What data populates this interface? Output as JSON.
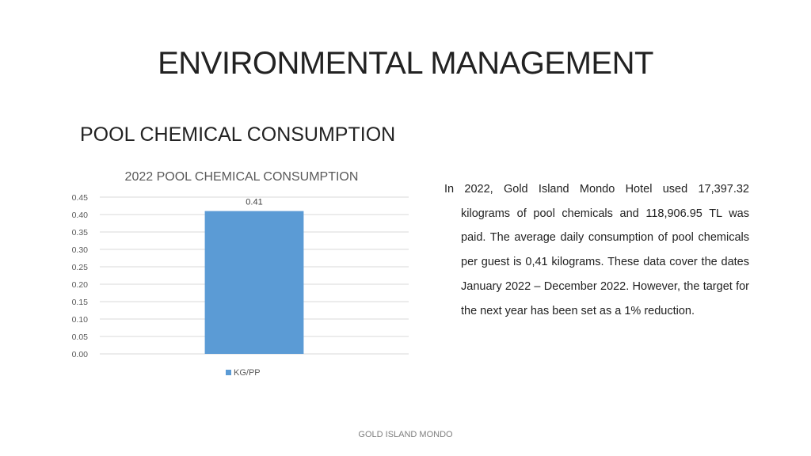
{
  "slide": {
    "title": "ENVIRONMENTAL MANAGEMENT",
    "subtitle": "POOL CHEMICAL CONSUMPTION",
    "paragraph": "In 2022, Gold Island Mondo Hotel used 17,397.32 kilograms of pool chemicals and 118,906.95 TL was paid. The average daily consumption of pool chemicals per guest is 0,41 kilograms. These data cover the dates January 2022 – December 2022. However, the target for the next year has been set as a 1% reduction.",
    "footer": "GOLD ISLAND MONDO"
  },
  "chart_data": {
    "type": "bar",
    "title": "2022 POOL CHEMICAL CONSUMPTION",
    "categories": [
      ""
    ],
    "series": [
      {
        "name": "KG/PP",
        "values": [
          0.41
        ],
        "data_labels": [
          "0.41"
        ],
        "color": "#5b9bd5"
      }
    ],
    "ylim": [
      0,
      0.45
    ],
    "yticks": [
      "0.00",
      "0.05",
      "0.10",
      "0.15",
      "0.20",
      "0.25",
      "0.30",
      "0.35",
      "0.40",
      "0.45"
    ],
    "grid": true,
    "legend": "bottom"
  }
}
